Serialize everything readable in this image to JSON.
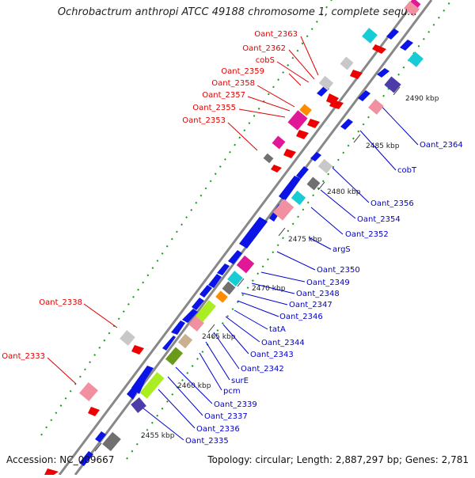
{
  "header": {
    "title": "Ochrobactrum anthropi ATCC 49188 chromosome 1, complete sequ..."
  },
  "footer": {
    "accession": "Accession: NC_009667",
    "summary": "Topology: circular; Length: 2,887,297 bp; Genes: 2,781"
  },
  "map": {
    "ticks": [
      "2455 kbp",
      "2460 kbp",
      "2465 kbp",
      "2470 kbp",
      "2475 kbp",
      "2480 kbp",
      "2485 kbp",
      "2490 kbp"
    ],
    "reverse_labels": [
      "Oant_2363",
      "Oant_2362",
      "cobS",
      "Oant_2359",
      "Oant_2358",
      "Oant_2357",
      "Oant_2355",
      "Oant_2353",
      "Oant_2338",
      "Oant_2333"
    ],
    "forward_labels": [
      "Oant_2364",
      "cobT",
      "Oant_2356",
      "Oant_2354",
      "Oant_2352",
      "argS",
      "Oant_2350",
      "Oant_2349",
      "Oant_2348",
      "Oant_2347",
      "Oant_2346",
      "tatA",
      "Oant_2344",
      "Oant_2343",
      "Oant_2342",
      "surE",
      "pcm",
      "Oant_2339",
      "Oant_2337",
      "Oant_2336",
      "Oant_2335"
    ],
    "colors": {
      "reverse_label": "#e00000",
      "forward_label": "#0000cc",
      "backbone": "#888888",
      "tick_dots": "#1a9a1a",
      "gene_blue": "#0a14e6",
      "gene_red": "#ee0000",
      "gene_cyan": "#18ccd6",
      "gene_pink": "#f090a0",
      "gene_magenta": "#e01898",
      "gene_lime": "#aaee22",
      "gene_olive": "#6a9a1a",
      "gene_grey": "#c8c8c8",
      "gene_darkgrey": "#707070",
      "gene_orange": "#ff8c00",
      "gene_purple": "#4c3ca8"
    }
  }
}
